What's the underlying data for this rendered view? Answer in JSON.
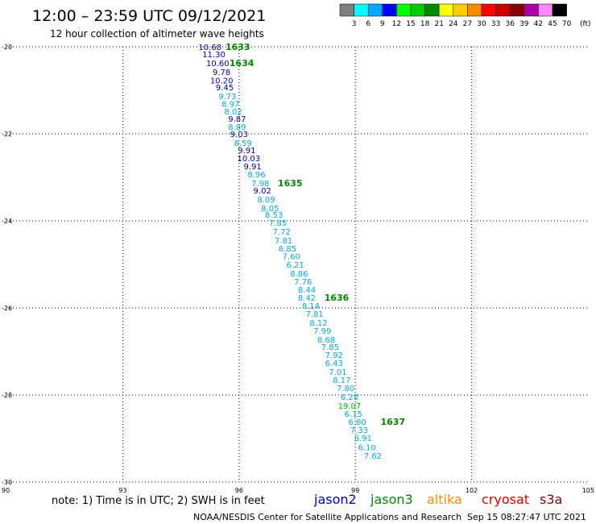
{
  "header": {
    "title": "12:00 – 23:59 UTC 09/12/2021",
    "subtitle": "12 hour collection of altimeter wave heights"
  },
  "colorbar": {
    "unit": "(ft)",
    "labels": [
      "3",
      "6",
      "9",
      "12",
      "15",
      "18",
      "21",
      "24",
      "27",
      "30",
      "33",
      "36",
      "39",
      "42",
      "45",
      "70"
    ],
    "colors": [
      "#7f7f7f",
      "#00ffff",
      "#00a8ff",
      "#0000ff",
      "#00ff00",
      "#00cc00",
      "#008800",
      "#ffff00",
      "#ffcc00",
      "#ff8800",
      "#ff0000",
      "#cc0000",
      "#880000",
      "#aa00aa",
      "#ff88ff",
      "#000000"
    ]
  },
  "footer": {
    "note": "note: 1) Time is in UTC; 2) SWH is in feet",
    "legend": [
      {
        "label": "jason2",
        "color": "#0000cc"
      },
      {
        "label": "jason3",
        "color": "#008800"
      },
      {
        "label": "altika",
        "color": "#ff8800"
      },
      {
        "label": "cryosat",
        "color": "#dd0000"
      },
      {
        "label": "s3a",
        "color": "#880000"
      }
    ],
    "credit": "NOAA/NESDIS Center for Satellite Applications and Research",
    "timestamp": "Sep 15 08:27:47 UTC 2021"
  },
  "chart_data": {
    "type": "scatter",
    "xlim": [
      90,
      105
    ],
    "ylim": [
      -30,
      -20
    ],
    "x_ticks": [
      "90",
      "93",
      "96",
      "99",
      "102",
      "105"
    ],
    "y_ticks": [
      "-20",
      "-22",
      "-24",
      "-26",
      "-28",
      "-30"
    ],
    "grid": true,
    "points": [
      {
        "lon": 95.25,
        "lat": -20.0,
        "swh": "10.68",
        "color": "#0000aa"
      },
      {
        "lon": 95.35,
        "lat": -20.17,
        "swh": "11.30",
        "color": "#0000aa"
      },
      {
        "lon": 95.45,
        "lat": -20.37,
        "swh": "10.60",
        "color": "#0000aa"
      },
      {
        "lon": 95.55,
        "lat": -20.57,
        "swh": "9.78",
        "color": "#0000aa"
      },
      {
        "lon": 95.55,
        "lat": -20.77,
        "swh": "10.20",
        "color": "#0000aa"
      },
      {
        "lon": 95.63,
        "lat": -20.93,
        "swh": "9.45",
        "color": "#0000aa"
      },
      {
        "lon": 95.7,
        "lat": -21.13,
        "swh": "9.73",
        "color": "#00aadd"
      },
      {
        "lon": 95.78,
        "lat": -21.31,
        "swh": "8.97",
        "color": "#00aadd"
      },
      {
        "lon": 95.85,
        "lat": -21.48,
        "swh": "8.02",
        "color": "#00aadd"
      },
      {
        "lon": 95.95,
        "lat": -21.65,
        "swh": "9.87",
        "color": "#0000aa"
      },
      {
        "lon": 95.95,
        "lat": -21.83,
        "swh": "8.89",
        "color": "#00aadd"
      },
      {
        "lon": 96.0,
        "lat": -22.0,
        "swh": "9.03",
        "color": "#0000aa"
      },
      {
        "lon": 96.1,
        "lat": -22.2,
        "swh": "8.59",
        "color": "#00aadd"
      },
      {
        "lon": 96.2,
        "lat": -22.37,
        "swh": "9.91",
        "color": "#0000aa"
      },
      {
        "lon": 96.25,
        "lat": -22.56,
        "swh": "10.03",
        "color": "#0000aa"
      },
      {
        "lon": 96.35,
        "lat": -22.74,
        "swh": "9.91",
        "color": "#0000aa"
      },
      {
        "lon": 96.45,
        "lat": -22.93,
        "swh": "8.96",
        "color": "#00aadd"
      },
      {
        "lon": 96.55,
        "lat": -23.13,
        "swh": "7.98",
        "color": "#00aadd"
      },
      {
        "lon": 96.6,
        "lat": -23.3,
        "swh": "9.02",
        "color": "#0000aa"
      },
      {
        "lon": 96.7,
        "lat": -23.5,
        "swh": "8.09",
        "color": "#00aadd"
      },
      {
        "lon": 96.8,
        "lat": -23.7,
        "swh": "8.05",
        "color": "#00aadd"
      },
      {
        "lon": 96.9,
        "lat": -23.85,
        "swh": "8.53",
        "color": "#00aadd"
      },
      {
        "lon": 97.0,
        "lat": -24.04,
        "swh": "7.85",
        "color": "#00aadd"
      },
      {
        "lon": 97.1,
        "lat": -24.24,
        "swh": "7.72",
        "color": "#00aadd"
      },
      {
        "lon": 97.15,
        "lat": -24.44,
        "swh": "7.81",
        "color": "#00aadd"
      },
      {
        "lon": 97.25,
        "lat": -24.63,
        "swh": "6.85",
        "color": "#00aadd"
      },
      {
        "lon": 97.35,
        "lat": -24.81,
        "swh": "7.60",
        "color": "#00aadd"
      },
      {
        "lon": 97.45,
        "lat": -25.0,
        "swh": "6.21",
        "color": "#00aadd"
      },
      {
        "lon": 97.55,
        "lat": -25.2,
        "swh": "8.86",
        "color": "#00aadd"
      },
      {
        "lon": 97.65,
        "lat": -25.39,
        "swh": "7.76",
        "color": "#00aadd"
      },
      {
        "lon": 97.75,
        "lat": -25.57,
        "swh": "8.44",
        "color": "#00aadd"
      },
      {
        "lon": 97.75,
        "lat": -25.76,
        "swh": "8.42",
        "color": "#00aadd"
      },
      {
        "lon": 97.85,
        "lat": -25.94,
        "swh": "8.14",
        "color": "#00aadd"
      },
      {
        "lon": 97.95,
        "lat": -26.13,
        "swh": "7.81",
        "color": "#00aadd"
      },
      {
        "lon": 98.05,
        "lat": -26.33,
        "swh": "8.12",
        "color": "#00aadd"
      },
      {
        "lon": 98.15,
        "lat": -26.52,
        "swh": "7.99",
        "color": "#00aadd"
      },
      {
        "lon": 98.25,
        "lat": -26.72,
        "swh": "8.68",
        "color": "#00aadd"
      },
      {
        "lon": 98.35,
        "lat": -26.89,
        "swh": "7.85",
        "color": "#00aadd"
      },
      {
        "lon": 98.45,
        "lat": -27.07,
        "swh": "7.92",
        "color": "#00aadd"
      },
      {
        "lon": 98.45,
        "lat": -27.26,
        "swh": "6.43",
        "color": "#00aadd"
      },
      {
        "lon": 98.55,
        "lat": -27.46,
        "swh": "7.01",
        "color": "#00aadd"
      },
      {
        "lon": 98.65,
        "lat": -27.65,
        "swh": "8.17",
        "color": "#00aadd"
      },
      {
        "lon": 98.75,
        "lat": -27.83,
        "swh": "7.80",
        "color": "#00aadd"
      },
      {
        "lon": 98.85,
        "lat": -28.04,
        "swh": "6.28",
        "color": "#00aadd"
      },
      {
        "lon": 98.85,
        "lat": -28.24,
        "swh": "19.07",
        "color": "#00bb00"
      },
      {
        "lon": 98.95,
        "lat": -28.43,
        "swh": "6.15",
        "color": "#00aadd"
      },
      {
        "lon": 99.05,
        "lat": -28.61,
        "swh": "6.80",
        "color": "#00aadd"
      },
      {
        "lon": 99.1,
        "lat": -28.8,
        "swh": "7.33",
        "color": "#00aadd"
      },
      {
        "lon": 99.2,
        "lat": -28.98,
        "swh": "6.91",
        "color": "#00aadd"
      },
      {
        "lon": 99.3,
        "lat": -29.19,
        "swh": "6.10",
        "color": "#00aadd"
      },
      {
        "lon": 99.45,
        "lat": -29.39,
        "swh": "7.62",
        "color": "#00aadd"
      }
    ],
    "time_labels": [
      {
        "text": "1633",
        "lon": 95.65,
        "lat": -20.0
      },
      {
        "text": "1634",
        "lon": 95.75,
        "lat": -20.37
      },
      {
        "text": "1635",
        "lon": 97.0,
        "lat": -23.13
      },
      {
        "text": "1636",
        "lon": 98.2,
        "lat": -25.76
      },
      {
        "text": "1637",
        "lon": 99.65,
        "lat": -28.61
      }
    ],
    "time_label_color": "#008800"
  }
}
